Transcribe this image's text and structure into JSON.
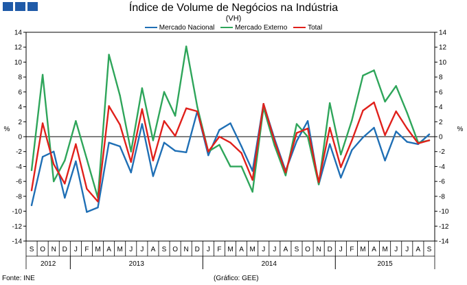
{
  "header": {
    "title": "Índice de Volume de Negócios na Indústria",
    "subtitle": "(VH)"
  },
  "footer": {
    "source": "Fonte: INE",
    "credit": "(Gráfico: GEE)"
  },
  "chart_data": {
    "type": "line",
    "title": "Índice de Volume de Negócios na Indústria",
    "subtitle": "(VH)",
    "ylabel_left": "%",
    "ylabel_right": "%",
    "ylim": [
      -14,
      14
    ],
    "yticks": [
      14,
      12,
      10,
      8,
      6,
      4,
      2,
      0,
      -2,
      -4,
      -6,
      -8,
      -10,
      -12,
      -14
    ],
    "grid": false,
    "legend_position": "top-center",
    "months": [
      "S",
      "O",
      "N",
      "D",
      "J",
      "F",
      "M",
      "A",
      "M",
      "J",
      "J",
      "A",
      "S",
      "O",
      "N",
      "D",
      "J",
      "F",
      "M",
      "A",
      "M",
      "J",
      "J",
      "A",
      "S",
      "O",
      "N",
      "D",
      "J",
      "F",
      "M",
      "A",
      "M",
      "J",
      "J",
      "A",
      "S"
    ],
    "years": [
      {
        "label": "2012",
        "start": 0,
        "end": 3
      },
      {
        "label": "2013",
        "start": 4,
        "end": 15
      },
      {
        "label": "2014",
        "start": 16,
        "end": 27
      },
      {
        "label": "2015",
        "start": 28,
        "end": 36
      }
    ],
    "series": [
      {
        "name": "Mercado Nacional",
        "color": "#1f6fb5",
        "values": [
          -9.2,
          -2.7,
          -2.0,
          -8.2,
          -3.3,
          -10.1,
          -9.5,
          -0.8,
          -1.3,
          -4.8,
          1.7,
          -5.3,
          -0.8,
          -1.9,
          -2.1,
          3.4,
          -2.5,
          0.9,
          1.8,
          -1.3,
          -4.6,
          4.4,
          -0.3,
          -4.6,
          -0.6,
          2.1,
          -6.4,
          -1.0,
          -5.5,
          -1.8,
          -0.1,
          1.2,
          -3.2,
          0.7,
          -0.7,
          -1.0,
          0.3
        ]
      },
      {
        "name": "Mercado Externo",
        "color": "#2ea55a",
        "values": [
          -4.5,
          8.3,
          -6.0,
          -3.2,
          2.1,
          -3.0,
          -8.2,
          11.0,
          5.5,
          -2.0,
          6.5,
          -0.5,
          6.0,
          2.8,
          12.1,
          4.0,
          -2.0,
          -1.1,
          -4.0,
          -4.0,
          -7.4,
          3.9,
          -1.2,
          -5.2,
          1.7,
          0.0,
          -6.4,
          4.5,
          -2.4,
          2.2,
          8.2,
          8.9,
          4.7,
          6.8,
          3.2,
          -0.8,
          -0.5
        ]
      },
      {
        "name": "Total",
        "color": "#e0201b",
        "values": [
          -7.2,
          1.8,
          -3.7,
          -6.3,
          -1.0,
          -7.0,
          -8.7,
          4.1,
          1.6,
          -3.4,
          3.7,
          -3.2,
          2.1,
          0.1,
          3.8,
          3.4,
          -2.0,
          0.0,
          -0.8,
          -2.2,
          -5.8,
          4.4,
          -0.6,
          -4.8,
          0.5,
          1.1,
          -6.1,
          1.2,
          -4.1,
          -0.5,
          3.5,
          4.6,
          0.2,
          3.4,
          1.1,
          -0.9,
          -0.5
        ]
      }
    ]
  }
}
